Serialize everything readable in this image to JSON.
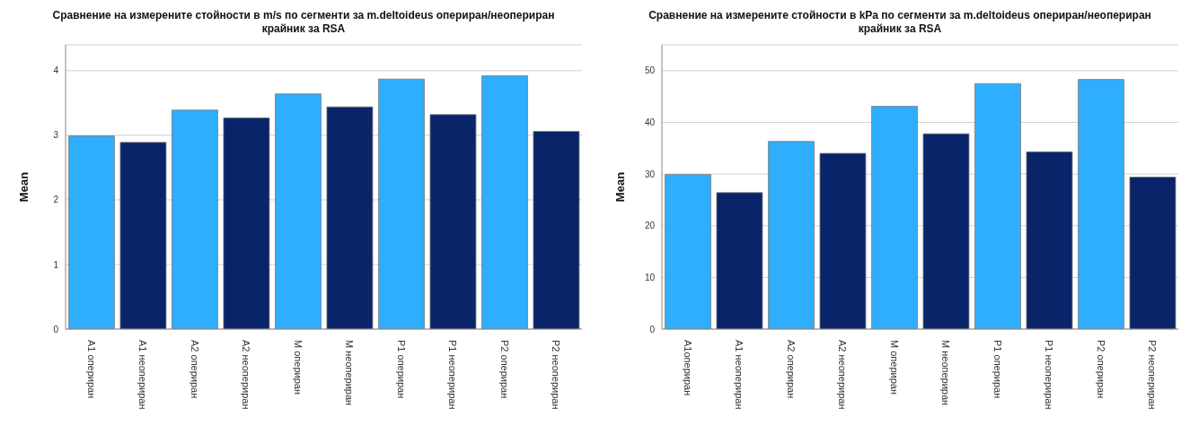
{
  "chart_data": [
    {
      "type": "bar",
      "title": "Сравнение на измерените стойности в m/s по сегменти за m.deltoideus опериран/неопериран крайник за RSA",
      "ylabel": "Mean",
      "categories": [
        "A1 опериран",
        "A1 неопериран",
        "A2 опериран",
        "A2 неопериран",
        "M опериран",
        "M неопериран",
        "P1 опериран",
        "P1 неопериран",
        "P2 опериран",
        "P2 неопериран"
      ],
      "values": [
        2.99,
        2.89,
        3.39,
        3.27,
        3.64,
        3.44,
        3.87,
        3.32,
        3.92,
        3.06
      ],
      "colors": [
        "#2eaefc",
        "#0a2469",
        "#2eaefc",
        "#0a2469",
        "#2eaefc",
        "#0a2469",
        "#2eaefc",
        "#0a2469",
        "#2eaefc",
        "#0a2469"
      ],
      "ylim": [
        0,
        4.4
      ],
      "yticks": [
        0,
        1,
        2,
        3,
        4
      ],
      "grid": "y",
      "legend": false
    },
    {
      "type": "bar",
      "title": "Сравнение на измерените стойности в kPa по сегменти за m.deltoideus опериран/неопериран крайник за RSA",
      "ylabel": "Mean",
      "categories": [
        "A1опериран",
        "A1 неопериран",
        "A2 опериран",
        "A2 неопериран",
        "M опериран",
        "M неопериран",
        "P1 опериран",
        "P1 неопериран",
        "P2 опериран",
        "P2 неопериран"
      ],
      "values": [
        29.9,
        26.4,
        36.3,
        34.0,
        43.1,
        37.8,
        47.5,
        34.3,
        48.3,
        29.4
      ],
      "colors": [
        "#2eaefc",
        "#0a2469",
        "#2eaefc",
        "#0a2469",
        "#2eaefc",
        "#0a2469",
        "#2eaefc",
        "#0a2469",
        "#2eaefc",
        "#0a2469"
      ],
      "ylim": [
        0,
        55
      ],
      "yticks": [
        0,
        10,
        20,
        30,
        40,
        50
      ],
      "grid": "y",
      "legend": false
    }
  ]
}
